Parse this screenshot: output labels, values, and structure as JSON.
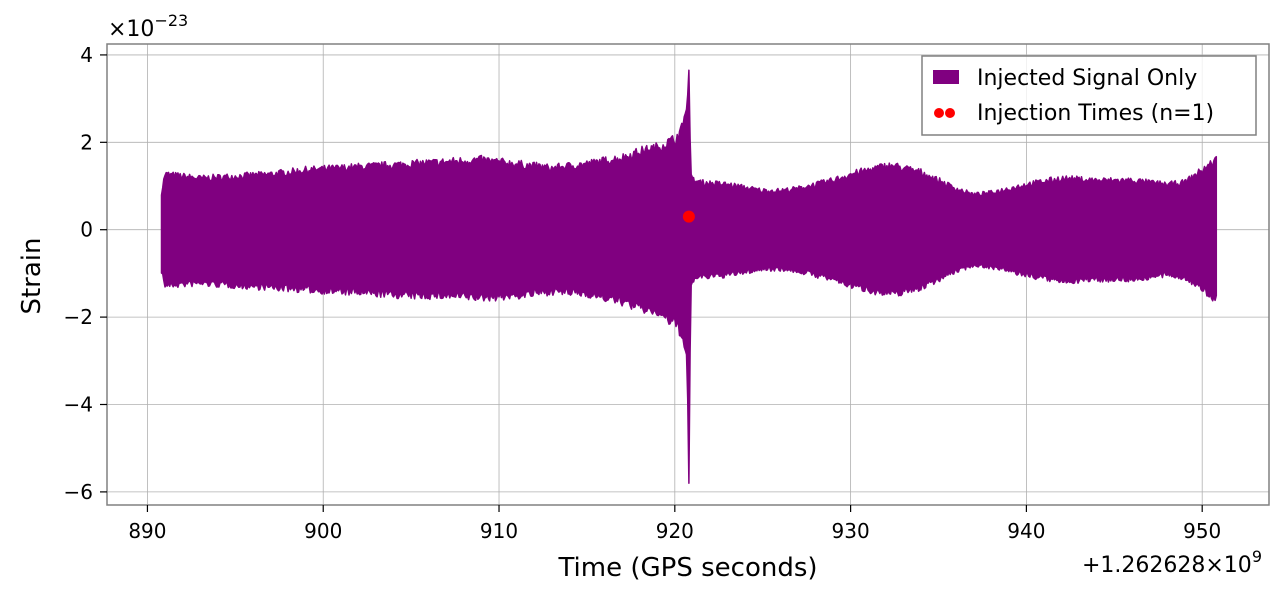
{
  "chart_data": {
    "type": "line",
    "xlabel": "Time (GPS seconds)",
    "ylabel": "Strain",
    "x_offset_label": "+1.262628×10",
    "x_offset_exp": "9",
    "y_scale_label": "×10",
    "y_scale_exp": "−23",
    "xlim": [
      887.7,
      953.8
    ],
    "ylim": [
      -6.3,
      4.25
    ],
    "x_ticks": [
      890,
      900,
      910,
      920,
      930,
      940,
      950
    ],
    "x_tick_labels": [
      "890",
      "900",
      "910",
      "920",
      "930",
      "940",
      "950"
    ],
    "y_ticks": [
      -6,
      -4,
      -2,
      0,
      2,
      4
    ],
    "y_tick_labels": [
      "−6",
      "−4",
      "−2",
      "0",
      "2",
      "4"
    ],
    "grid": true,
    "legend_position": "top-right",
    "series": [
      {
        "name": "Injected Signal Only",
        "color": "#800080",
        "kind": "strain-envelope",
        "x": [
          890.8,
          891.0,
          893,
          895,
          897,
          899,
          901,
          903,
          905,
          907,
          909,
          911,
          913,
          915,
          917,
          918,
          919,
          919.5,
          920,
          920.3,
          920.55,
          920.7,
          920.8,
          920.9,
          921.0,
          921.5,
          923,
          925,
          926,
          927,
          928,
          929,
          930,
          931,
          932,
          932.5,
          933,
          934,
          935,
          936,
          937,
          938,
          940,
          942,
          944,
          946,
          948,
          949,
          950,
          950.8
        ],
        "upper": [
          0.9,
          1.35,
          1.25,
          1.3,
          1.35,
          1.45,
          1.5,
          1.55,
          1.6,
          1.65,
          1.7,
          1.6,
          1.5,
          1.6,
          1.75,
          1.9,
          2.0,
          2.1,
          2.2,
          2.35,
          2.6,
          2.8,
          3.65,
          1.3,
          1.2,
          1.15,
          1.1,
          0.95,
          0.95,
          1.0,
          1.1,
          1.2,
          1.35,
          1.45,
          1.55,
          1.55,
          1.5,
          1.4,
          1.2,
          1.0,
          0.85,
          0.9,
          1.1,
          1.25,
          1.2,
          1.2,
          1.1,
          1.15,
          1.45,
          1.7
        ],
        "lower": [
          -1.0,
          -1.35,
          -1.3,
          -1.35,
          -1.4,
          -1.45,
          -1.5,
          -1.55,
          -1.6,
          -1.6,
          -1.65,
          -1.6,
          -1.5,
          -1.55,
          -1.75,
          -1.9,
          -2.0,
          -2.15,
          -2.3,
          -2.45,
          -2.7,
          -2.9,
          -5.8,
          -1.3,
          -1.2,
          -1.15,
          -1.1,
          -0.95,
          -0.95,
          -1.0,
          -1.1,
          -1.2,
          -1.35,
          -1.45,
          -1.55,
          -1.55,
          -1.5,
          -1.4,
          -1.2,
          -1.0,
          -0.85,
          -0.9,
          -1.1,
          -1.25,
          -1.2,
          -1.2,
          -1.1,
          -1.15,
          -1.45,
          -1.7
        ]
      },
      {
        "name": "Injection Times (n=1)",
        "color": "#ff0000",
        "kind": "scatter",
        "x": [
          920.8
        ],
        "y": [
          0.3
        ]
      }
    ]
  }
}
